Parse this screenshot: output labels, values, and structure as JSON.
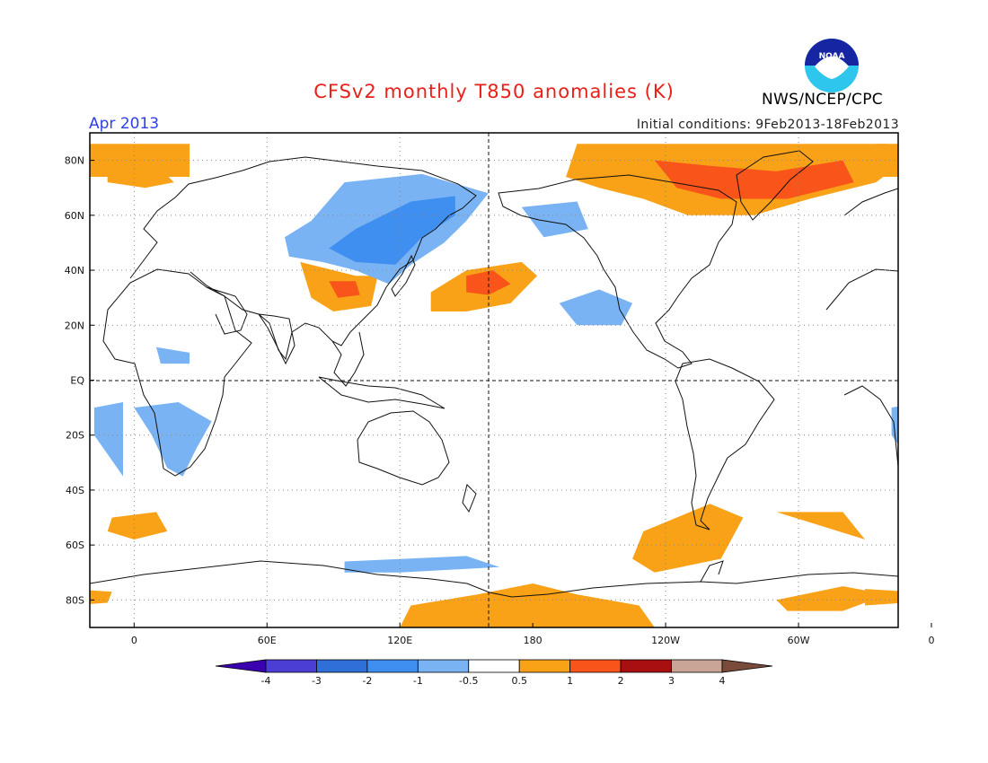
{
  "title": "CFSv2 monthly T850 anomalies (K)",
  "month_label": "Apr 2013",
  "initial_conditions": "Initial conditions: 9Feb2013-18Feb2013",
  "agency": "NWS/NCEP/CPC",
  "logo_text": "NOAA",
  "colors": {
    "title": "#e8201a",
    "month": "#2d3fe8",
    "bins": [
      "#3a00b0",
      "#4b3ed4",
      "#2f6fd8",
      "#3f8ff0",
      "#79b3f3",
      "#ffffff",
      "#f9a218",
      "#f95419",
      "#a80f10",
      "#c9a595",
      "#7a4b3a"
    ]
  },
  "lat_ticks": [
    "80N",
    "60N",
    "40N",
    "20N",
    "EQ",
    "20S",
    "40S",
    "60S",
    "80S"
  ],
  "lon_ticks": [
    "0",
    "60E",
    "120E",
    "180",
    "120W",
    "60W",
    "0"
  ],
  "colorbar": {
    "labels": [
      "-4",
      "-3",
      "-2",
      "-1",
      "-0.5",
      "0.5",
      "1",
      "2",
      "3",
      "4"
    ]
  },
  "anomaly_regions": [
    {
      "level": "warm",
      "name": "arctic-north-atlantic",
      "poly": [
        [
          -25,
          86
        ],
        [
          25,
          86
        ],
        [
          25,
          74
        ],
        [
          -25,
          74
        ]
      ]
    },
    {
      "level": "warm",
      "name": "europe-arctic-atlantic",
      "poly": [
        [
          -12,
          78
        ],
        [
          8,
          80
        ],
        [
          18,
          72
        ],
        [
          5,
          70
        ],
        [
          -12,
          72
        ]
      ]
    },
    {
      "level": "warm",
      "name": "north-america-arctic",
      "poly": [
        [
          -160,
          86
        ],
        [
          -20,
          86
        ],
        [
          -12,
          80
        ],
        [
          -25,
          72
        ],
        [
          -55,
          66
        ],
        [
          -80,
          60
        ],
        [
          -110,
          60
        ],
        [
          -130,
          66
        ],
        [
          -150,
          70
        ],
        [
          -165,
          74
        ]
      ]
    },
    {
      "level": "hot",
      "name": "arctic-canada-greenland",
      "poly": [
        [
          -125,
          80
        ],
        [
          -100,
          78
        ],
        [
          -70,
          76
        ],
        [
          -40,
          80
        ],
        [
          -35,
          72
        ],
        [
          -65,
          66
        ],
        [
          -95,
          66
        ],
        [
          -115,
          70
        ]
      ]
    },
    {
      "level": "warm",
      "name": "north-pacific",
      "poly": [
        [
          134,
          32
        ],
        [
          150,
          40
        ],
        [
          175,
          43
        ],
        [
          182,
          38
        ],
        [
          170,
          28
        ],
        [
          150,
          25
        ],
        [
          134,
          25
        ]
      ]
    },
    {
      "level": "hot",
      "name": "north-pacific-core",
      "poly": [
        [
          150,
          38
        ],
        [
          162,
          40
        ],
        [
          170,
          35
        ],
        [
          160,
          31
        ],
        [
          150,
          32
        ]
      ]
    },
    {
      "level": "warm",
      "name": "tibet",
      "poly": [
        [
          75,
          43
        ],
        [
          100,
          38
        ],
        [
          110,
          38
        ],
        [
          107,
          27
        ],
        [
          90,
          25
        ],
        [
          80,
          30
        ]
      ]
    },
    {
      "level": "hot",
      "name": "tibet-core",
      "poly": [
        [
          88,
          36
        ],
        [
          100,
          36
        ],
        [
          102,
          31
        ],
        [
          92,
          30
        ]
      ]
    },
    {
      "level": "cool",
      "name": "siberia",
      "poly": [
        [
          68,
          52
        ],
        [
          80,
          58
        ],
        [
          95,
          72
        ],
        [
          130,
          75
        ],
        [
          160,
          68
        ],
        [
          150,
          58
        ],
        [
          140,
          50
        ],
        [
          125,
          42
        ],
        [
          115,
          35
        ],
        [
          100,
          40
        ],
        [
          85,
          43
        ],
        [
          70,
          45
        ]
      ]
    },
    {
      "level": "cool2",
      "name": "siberia-core",
      "poly": [
        [
          88,
          48
        ],
        [
          100,
          55
        ],
        [
          125,
          65
        ],
        [
          145,
          67
        ],
        [
          145,
          60
        ],
        [
          130,
          52
        ],
        [
          118,
          42
        ],
        [
          100,
          43
        ]
      ]
    },
    {
      "level": "cool",
      "name": "bering",
      "poly": [
        [
          175,
          63
        ],
        [
          200,
          65
        ],
        [
          205,
          55
        ],
        [
          185,
          52
        ]
      ]
    },
    {
      "level": "cool",
      "name": "central-pacific",
      "poly": [
        [
          192,
          28
        ],
        [
          210,
          33
        ],
        [
          225,
          28
        ],
        [
          220,
          20
        ],
        [
          200,
          20
        ]
      ]
    },
    {
      "level": "cool",
      "name": "southern-africa",
      "poly": [
        [
          0,
          -10
        ],
        [
          20,
          -8
        ],
        [
          35,
          -15
        ],
        [
          28,
          -25
        ],
        [
          22,
          -35
        ],
        [
          15,
          -32
        ],
        [
          8,
          -20
        ]
      ]
    },
    {
      "level": "cool",
      "name": "east-africa",
      "poly": [
        [
          10,
          12
        ],
        [
          25,
          10
        ],
        [
          25,
          6
        ],
        [
          12,
          6
        ]
      ]
    },
    {
      "level": "cool",
      "name": "south-atlantic",
      "poly": [
        [
          -18,
          -10
        ],
        [
          -5,
          -8
        ],
        [
          -5,
          -35
        ],
        [
          -18,
          -20
        ]
      ]
    },
    {
      "level": "warm",
      "name": "south-atlantic-low",
      "poly": [
        [
          -10,
          -50
        ],
        [
          10,
          -48
        ],
        [
          15,
          -55
        ],
        [
          0,
          -58
        ],
        [
          -12,
          -55
        ]
      ]
    },
    {
      "level": "warm",
      "name": "south-pacific",
      "poly": [
        [
          -130,
          -55
        ],
        [
          -100,
          -45
        ],
        [
          -85,
          -50
        ],
        [
          -95,
          -65
        ],
        [
          -125,
          -70
        ],
        [
          -135,
          -65
        ]
      ]
    },
    {
      "level": "warm",
      "name": "south-ocean-east",
      "poly": [
        [
          -70,
          -48
        ],
        [
          -40,
          -48
        ],
        [
          -30,
          -58
        ],
        -1
      ]
    },
    {
      "level": "warm",
      "name": "antarctic-ross",
      "poly": [
        [
          120,
          -90
        ],
        [
          235,
          -90
        ],
        [
          228,
          -82
        ],
        [
          200,
          -78
        ],
        [
          180,
          -74
        ],
        [
          155,
          -78
        ],
        [
          125,
          -82
        ]
      ]
    },
    {
      "level": "warm",
      "name": "antarctic-weddell",
      "poly": [
        [
          -70,
          -80
        ],
        [
          -40,
          -75
        ],
        [
          -20,
          -78
        ],
        [
          -40,
          -84
        ],
        [
          -65,
          -84
        ]
      ]
    },
    {
      "level": "cool",
      "name": "antarctic-indian",
      "poly": [
        [
          95,
          -66
        ],
        [
          150,
          -64
        ],
        [
          165,
          -68
        ],
        [
          120,
          -70
        ],
        [
          95,
          -70
        ]
      ]
    },
    {
      "level": "warm",
      "name": "south-indian-west",
      "poly": [
        [
          -30,
          -76
        ],
        [
          -10,
          -77
        ],
        [
          -12,
          -81
        ],
        [
          -30,
          -82
        ]
      ]
    }
  ]
}
